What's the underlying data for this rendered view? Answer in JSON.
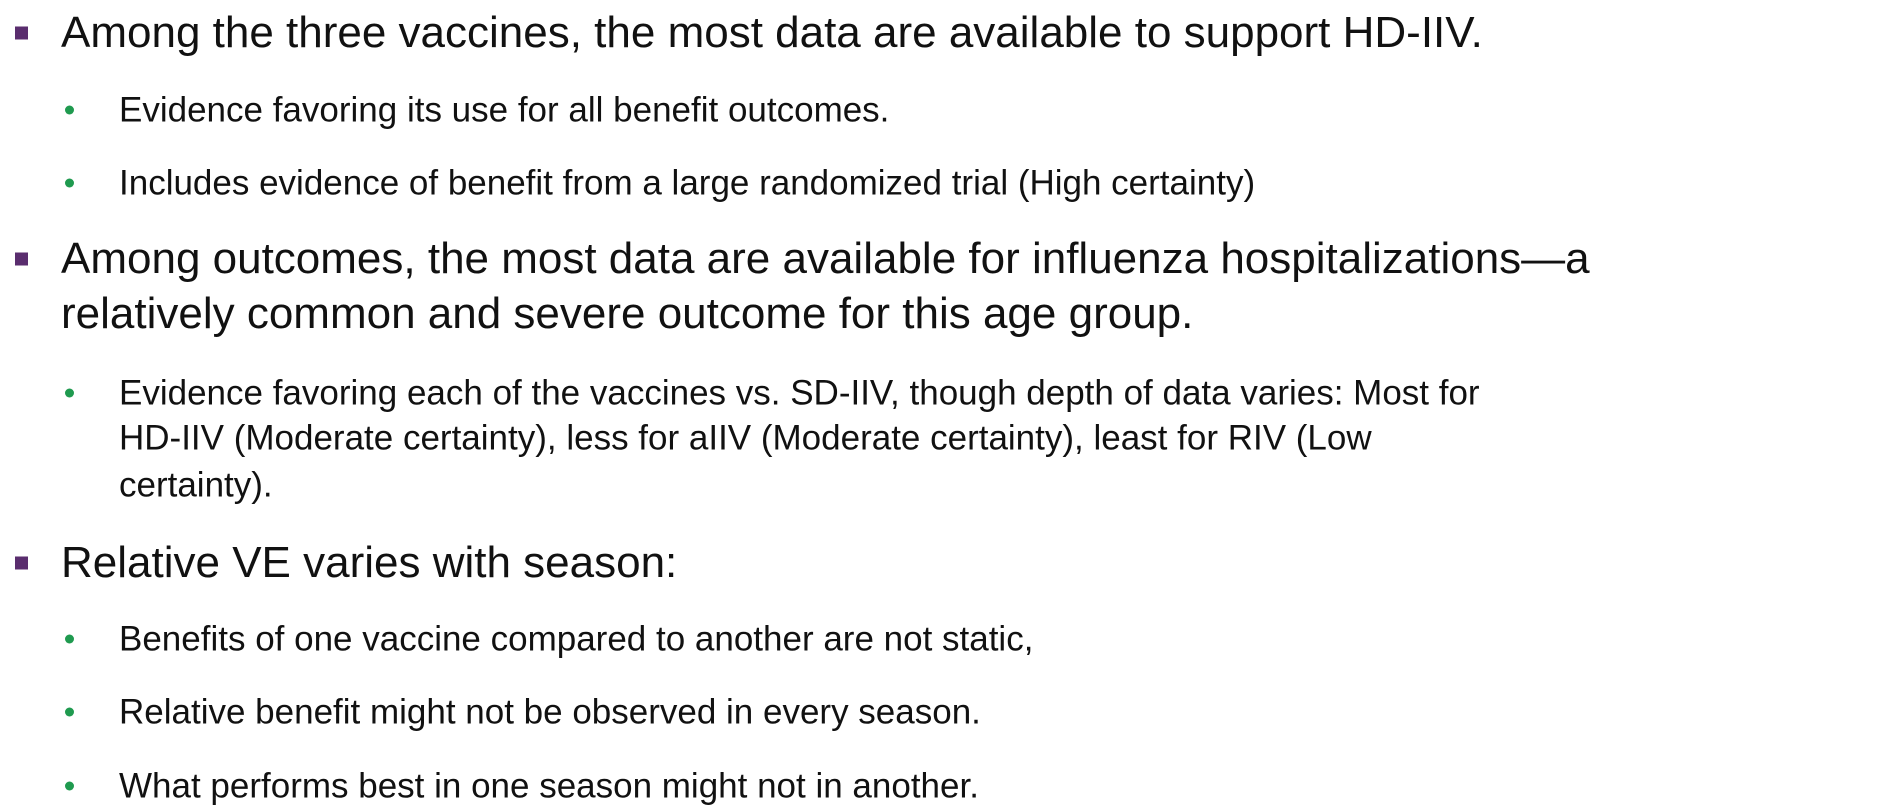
{
  "bullets": [
    {
      "lines": [
        "Among the three vaccines, the most data are available to support HD-IIV."
      ],
      "sub": [
        {
          "lines": [
            "Evidence favoring its use for all benefit outcomes."
          ]
        },
        {
          "lines": [
            "Includes evidence of benefit from a large randomized trial (High certainty)"
          ]
        }
      ]
    },
    {
      "lines": [
        "Among outcomes, the most data are available for influenza hospitalizations—a",
        "relatively common and severe outcome for this age group."
      ],
      "sub": [
        {
          "lines": [
            "Evidence favoring each of the vaccines vs. SD-IIV, though depth of data varies: Most for",
            "HD-IIV (Moderate certainty), less for aIIV (Moderate certainty), least for RIV (Low",
            "certainty)."
          ]
        }
      ]
    },
    {
      "lines": [
        "Relative VE varies with season:"
      ],
      "sub": [
        {
          "lines": [
            "Benefits of one vaccine compared to another are not static,"
          ]
        },
        {
          "lines": [
            "Relative benefit might not be observed in every season."
          ]
        },
        {
          "lines": [
            "What performs best in one season might not in another."
          ]
        }
      ]
    }
  ]
}
